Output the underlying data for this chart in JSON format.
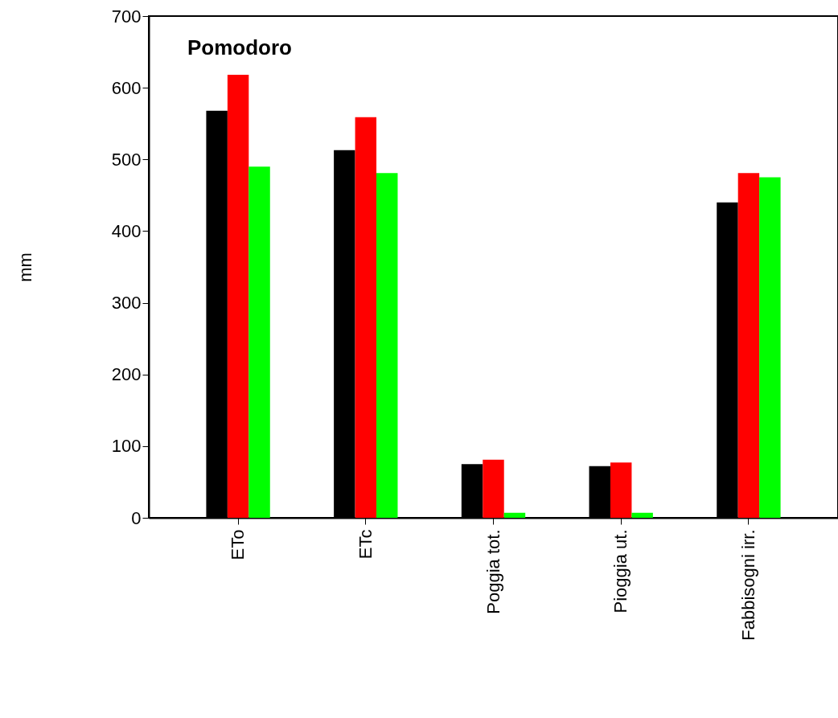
{
  "chart_data": {
    "type": "bar",
    "title": "Pomodoro",
    "ylabel": "mm",
    "categories": [
      "ETo",
      "ETc",
      "Poggia tot.",
      "Pioggia ut.",
      "Fabbisogni irr."
    ],
    "series": [
      {
        "color": "#000000",
        "values": [
          568,
          513,
          75,
          72,
          440
        ]
      },
      {
        "color": "#ff0000",
        "values": [
          618,
          559,
          81,
          77,
          481
        ]
      },
      {
        "color": "#00ff00",
        "values": [
          490,
          481,
          7,
          7,
          475
        ]
      }
    ],
    "ylim": [
      0,
      700
    ],
    "yticks": [
      0,
      100,
      200,
      300,
      400,
      500,
      600,
      700
    ],
    "grid": false,
    "legend": false
  }
}
